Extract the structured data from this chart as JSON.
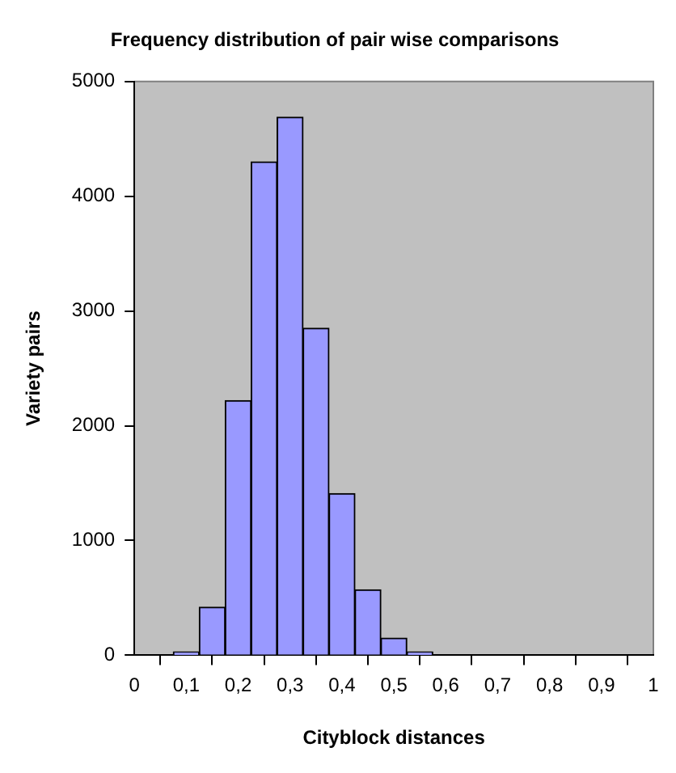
{
  "chart_data": {
    "type": "histogram",
    "title": "Frequency distribution of pair wise comparisons",
    "xlabel": "Cityblock distances",
    "ylabel": "Variety pairs",
    "bins": [
      0.075,
      0.125,
      0.175,
      0.225,
      0.275,
      0.325,
      0.375,
      0.425,
      0.475,
      0.525,
      0.575
    ],
    "values": [
      30,
      420,
      2220,
      4300,
      4690,
      2850,
      1410,
      570,
      150,
      30
    ],
    "color": "#9999ff",
    "xlim": [
      0,
      1
    ],
    "xticks": [
      0,
      {
        "value": 0.1,
        "label": "0,1"
      },
      {
        "value": 0.2,
        "label": "0,2"
      },
      {
        "value": 0.3,
        "label": "0,3"
      },
      {
        "value": 0.4,
        "label": "0,4"
      },
      {
        "value": 0.5,
        "label": "0,5"
      },
      {
        "value": 0.6,
        "label": "0,6"
      },
      {
        "value": 0.7,
        "label": "0,7"
      },
      {
        "value": 0.8,
        "label": "0,8"
      },
      {
        "value": 0.9,
        "label": "0,9"
      },
      1
    ],
    "ylim": [
      0,
      5000
    ],
    "yticks": [
      0,
      1000,
      2000,
      3000,
      4000,
      5000
    ],
    "grid": false,
    "legend": false
  }
}
